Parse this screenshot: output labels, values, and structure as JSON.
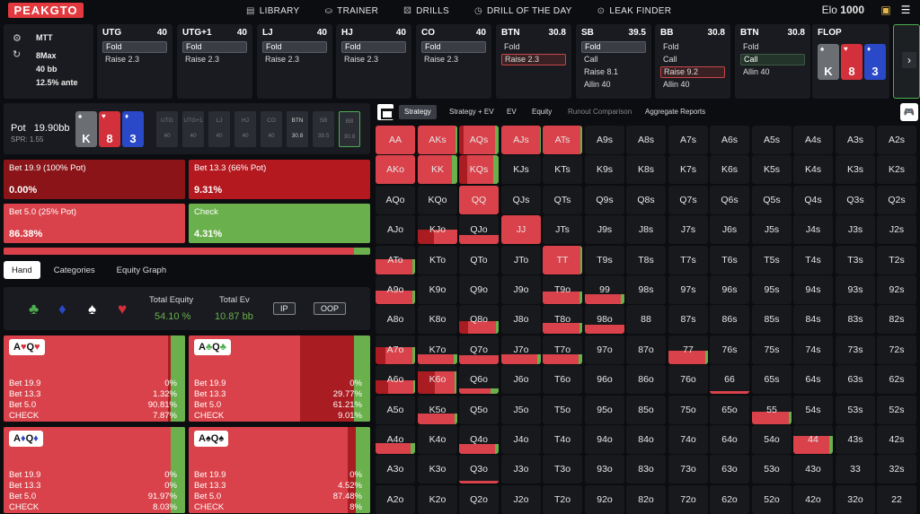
{
  "app": {
    "logo": "PEAKGTO",
    "nav": [
      {
        "icon": "▤",
        "label": "LIBRARY"
      },
      {
        "icon": "⛀",
        "label": "TRAINER"
      },
      {
        "icon": "⚄",
        "label": "DRILLS"
      },
      {
        "icon": "◷",
        "label": "DRILL OF THE DAY"
      },
      {
        "icon": "⊙",
        "label": "LEAK FINDER"
      }
    ],
    "elo_label": "Elo",
    "elo_value": "1000"
  },
  "game_info": {
    "format": "MTT",
    "table": "8Max",
    "stack": "40 bb",
    "ante": "12.5% ante"
  },
  "positions": [
    {
      "name": "UTG",
      "stack": "40",
      "actions": [
        {
          "label": "Fold",
          "state": "sel"
        },
        {
          "label": "Raise 2.3",
          "state": ""
        }
      ]
    },
    {
      "name": "UTG+1",
      "stack": "40",
      "actions": [
        {
          "label": "Fold",
          "state": "sel"
        },
        {
          "label": "Raise 2.3",
          "state": ""
        }
      ]
    },
    {
      "name": "LJ",
      "stack": "40",
      "actions": [
        {
          "label": "Fold",
          "state": "sel"
        },
        {
          "label": "Raise 2.3",
          "state": ""
        }
      ]
    },
    {
      "name": "HJ",
      "stack": "40",
      "actions": [
        {
          "label": "Fold",
          "state": "sel"
        },
        {
          "label": "Raise 2.3",
          "state": ""
        }
      ]
    },
    {
      "name": "CO",
      "stack": "40",
      "actions": [
        {
          "label": "Fold",
          "state": "sel"
        },
        {
          "label": "Raise 2.3",
          "state": ""
        }
      ]
    },
    {
      "name": "BTN",
      "stack": "30.8",
      "actions": [
        {
          "label": "Fold",
          "state": ""
        },
        {
          "label": "Raise 2.3",
          "state": "sel-red"
        }
      ]
    },
    {
      "name": "SB",
      "stack": "39.5",
      "actions": [
        {
          "label": "Fold",
          "state": "sel"
        },
        {
          "label": "Call",
          "state": ""
        },
        {
          "label": "Raise 8.1",
          "state": ""
        },
        {
          "label": "Allin 40",
          "state": ""
        }
      ]
    },
    {
      "name": "BB",
      "stack": "30.8",
      "actions": [
        {
          "label": "Fold",
          "state": ""
        },
        {
          "label": "Call",
          "state": ""
        },
        {
          "label": "Raise 9.2",
          "state": "sel-red"
        },
        {
          "label": "Allin 40",
          "state": ""
        }
      ]
    },
    {
      "name": "BTN",
      "stack": "30.8",
      "actions": [
        {
          "label": "Fold",
          "state": ""
        },
        {
          "label": "Call",
          "state": "sel-green"
        },
        {
          "label": "Allin 40",
          "state": ""
        }
      ]
    }
  ],
  "flop": {
    "label": "FLOP",
    "cards": [
      {
        "rank": "K",
        "suit": "♠",
        "color": "#6b6e73"
      },
      {
        "rank": "8",
        "suit": "♥",
        "color": "#d2303a"
      },
      {
        "rank": "3",
        "suit": "♦",
        "color": "#2a49c8"
      }
    ]
  },
  "pot": {
    "label": "Pot",
    "value": "19.90bb",
    "spr": "SPR: 1.55",
    "seats": [
      {
        "name": "UTG",
        "value": "40",
        "state": ""
      },
      {
        "name": "UTG+1",
        "value": "40",
        "state": ""
      },
      {
        "name": "LJ",
        "value": "40",
        "state": ""
      },
      {
        "name": "HJ",
        "value": "40",
        "state": ""
      },
      {
        "name": "CO",
        "value": "40",
        "state": ""
      },
      {
        "name": "BTN",
        "value": "30.8",
        "state": "active"
      },
      {
        "name": "SB",
        "value": "39.5",
        "state": ""
      },
      {
        "name": "BB",
        "value": "30.8",
        "state": "bb"
      }
    ]
  },
  "actions": [
    {
      "label": "Bet 19.9 (100% Pot)",
      "value": "0.00%",
      "color": "#8a1418"
    },
    {
      "label": "Bet 13.3 (66% Pot)",
      "value": "9.31%",
      "color": "#b3191f"
    },
    {
      "label": "Bet 5.0 (25% Pot)",
      "value": "86.38%",
      "color": "#d9424a"
    },
    {
      "label": "Check",
      "value": "4.31%",
      "color": "#6ab04c"
    }
  ],
  "freq": {
    "check": 0.0431
  },
  "tabs": [
    "Hand",
    "Categories",
    "Equity Graph"
  ],
  "equity": {
    "suits": [
      {
        "glyph": "♣",
        "color": "#4caf50"
      },
      {
        "glyph": "♦",
        "color": "#2a49c8"
      },
      {
        "glyph": "♠",
        "color": "#ffffff"
      },
      {
        "glyph": "♥",
        "color": "#d2303a"
      }
    ],
    "total_equity_label": "Total Equity",
    "total_equity": "54.10 %",
    "total_ev_label": "Total Ev",
    "total_ev": "10.87 bb",
    "ip": "IP",
    "oop": "OOP"
  },
  "combos": [
    {
      "hand": "A♥Q♥",
      "rows": [
        [
          "Bet 19.9",
          "0%"
        ],
        [
          "Bet 13.3",
          "1.32%"
        ],
        [
          "Bet 5.0",
          "90.81%"
        ],
        [
          "CHECK",
          "7.87%"
        ]
      ],
      "b133": 0.0132,
      "check": 0.0787
    },
    {
      "hand": "A♣Q♣",
      "rows": [
        [
          "Bet 19.9",
          "0%"
        ],
        [
          "Bet 13.3",
          "29.77%"
        ],
        [
          "Bet 5.0",
          "61.21%"
        ],
        [
          "CHECK",
          "9.01%"
        ]
      ],
      "b133": 0.2977,
      "check": 0.0901
    },
    {
      "hand": "A♦Q♦",
      "rows": [
        [
          "Bet 19.9",
          "0%"
        ],
        [
          "Bet 13.3",
          "0%"
        ],
        [
          "Bet 5.0",
          "91.97%"
        ],
        [
          "CHECK",
          "8.03%"
        ]
      ],
      "b133": 0.0,
      "check": 0.0803
    },
    {
      "hand": "A♠Q♠",
      "rows": [
        [
          "Bet 19.9",
          "0%"
        ],
        [
          "Bet 13.3",
          "4.52%"
        ],
        [
          "Bet 5.0",
          "87.48%"
        ],
        [
          "CHECK",
          "8%"
        ]
      ],
      "b133": 0.0452,
      "check": 0.08
    }
  ],
  "grid_tabs": [
    {
      "label": "Strategy",
      "state": "on"
    },
    {
      "label": "Strategy + EV",
      "state": ""
    },
    {
      "label": "EV",
      "state": ""
    },
    {
      "label": "Equity",
      "state": ""
    },
    {
      "label": "Runout Comparison",
      "state": "dim"
    },
    {
      "label": "Aggregate Reports",
      "state": ""
    }
  ],
  "hand_grid": {
    "ranks": [
      "A",
      "K",
      "Q",
      "J",
      "T",
      "9",
      "8",
      "7",
      "6",
      "5",
      "4",
      "3",
      "2"
    ],
    "strategies": {
      "AA": [
        0,
        0,
        1,
        0
      ],
      "AKs": [
        0,
        0,
        0.95,
        0.05
      ],
      "AQs": [
        0,
        0.12,
        0.8,
        0.08
      ],
      "AJs": [
        0,
        0,
        0.97,
        0.03
      ],
      "ATs": [
        0,
        0,
        0.95,
        0.05
      ],
      "AKo": [
        0,
        0,
        1,
        0
      ],
      "KK": [
        0,
        0,
        0.86,
        0.14
      ],
      "KQs": [
        0,
        0.2,
        0.65,
        0.15
      ],
      "QQ": [
        0,
        0,
        1,
        0
      ],
      "KJo": [
        0,
        0.2,
        0.3,
        0
      ],
      "QJo": [
        0,
        0,
        0.3,
        0
      ],
      "JJ": [
        0,
        0,
        1,
        0
      ],
      "TT": [
        0,
        0,
        0.95,
        0.05
      ],
      "ATo": [
        0,
        0,
        0.48,
        0.04
      ],
      "A9o": [
        0,
        0,
        0.45,
        0.03
      ],
      "T9o": [
        0,
        0,
        0.4,
        0.03
      ],
      "99": [
        0,
        0,
        0.3,
        0.03
      ],
      "Q8o": [
        0,
        0.1,
        0.3,
        0.03
      ],
      "T8o": [
        0,
        0,
        0.35,
        0.03
      ],
      "98o": [
        0,
        0,
        0.3,
        0
      ],
      "A7o": [
        0,
        0.15,
        0.4,
        0.04
      ],
      "K7o": [
        0,
        0,
        0.3,
        0.03
      ],
      "Q7o": [
        0,
        0,
        0.3,
        0
      ],
      "J7o": [
        0,
        0,
        0.3,
        0.03
      ],
      "T7o": [
        0,
        0,
        0.3,
        0.03
      ],
      "77": [
        0,
        0,
        0.45,
        0.03
      ],
      "A6o": [
        0,
        0.15,
        0.3,
        0.03
      ],
      "K6o": [
        0,
        0.35,
        0.4,
        0.04
      ],
      "Q6o": [
        0,
        0,
        0.15,
        0.04
      ],
      "66": [
        0,
        0,
        0.08,
        0
      ],
      "K5o": [
        0,
        0,
        0.35,
        0.03
      ],
      "55": [
        0,
        0,
        0.4,
        0.03
      ],
      "A4o": [
        0,
        0,
        0.35,
        0.04
      ],
      "Q4o": [
        0,
        0,
        0.3,
        0.03
      ],
      "44": [
        0,
        0,
        0.55,
        0.06
      ],
      "Q3o": [
        0,
        0,
        0.08,
        0
      ]
    }
  }
}
